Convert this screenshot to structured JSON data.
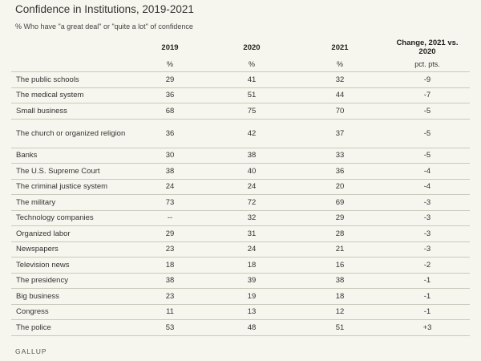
{
  "chart_data": {
    "type": "table",
    "title": "Confidence in Institutions, 2019-2021",
    "subtitle": "% Who have \"a great deal\" or \"quite a lot\" of confidence",
    "columns": [
      {
        "header": "",
        "unit": ""
      },
      {
        "header": "2019",
        "unit": "%"
      },
      {
        "header": "2020",
        "unit": "%"
      },
      {
        "header": "2021",
        "unit": "%"
      },
      {
        "header": "Change, 2021 vs. 2020",
        "unit": "pct. pts."
      }
    ],
    "rows": [
      {
        "name": "The public schools",
        "y2019": "29",
        "y2020": "41",
        "y2021": "32",
        "change": "-9"
      },
      {
        "name": "The medical system",
        "y2019": "36",
        "y2020": "51",
        "y2021": "44",
        "change": "-7"
      },
      {
        "name": "Small business",
        "y2019": "68",
        "y2020": "75",
        "y2021": "70",
        "change": "-5"
      },
      {
        "name": "The church or organized religion",
        "y2019": "36",
        "y2020": "42",
        "y2021": "37",
        "change": "-5"
      },
      {
        "name": "Banks",
        "y2019": "30",
        "y2020": "38",
        "y2021": "33",
        "change": "-5"
      },
      {
        "name": "The U.S. Supreme Court",
        "y2019": "38",
        "y2020": "40",
        "y2021": "36",
        "change": "-4"
      },
      {
        "name": "The criminal justice system",
        "y2019": "24",
        "y2020": "24",
        "y2021": "20",
        "change": "-4"
      },
      {
        "name": "The military",
        "y2019": "73",
        "y2020": "72",
        "y2021": "69",
        "change": "-3"
      },
      {
        "name": "Technology companies",
        "y2019": "--",
        "y2020": "32",
        "y2021": "29",
        "change": "-3"
      },
      {
        "name": "Organized labor",
        "y2019": "29",
        "y2020": "31",
        "y2021": "28",
        "change": "-3"
      },
      {
        "name": "Newspapers",
        "y2019": "23",
        "y2020": "24",
        "y2021": "21",
        "change": "-3"
      },
      {
        "name": "Television news",
        "y2019": "18",
        "y2020": "18",
        "y2021": "16",
        "change": "-2"
      },
      {
        "name": "The presidency",
        "y2019": "38",
        "y2020": "39",
        "y2021": "38",
        "change": "-1"
      },
      {
        "name": "Big business",
        "y2019": "23",
        "y2020": "19",
        "y2021": "18",
        "change": "-1"
      },
      {
        "name": "Congress",
        "y2019": "11",
        "y2020": "13",
        "y2021": "12",
        "change": "-1"
      },
      {
        "name": "The police",
        "y2019": "53",
        "y2020": "48",
        "y2021": "51",
        "change": "+3"
      }
    ]
  },
  "footer": {
    "source": "GALLUP"
  }
}
